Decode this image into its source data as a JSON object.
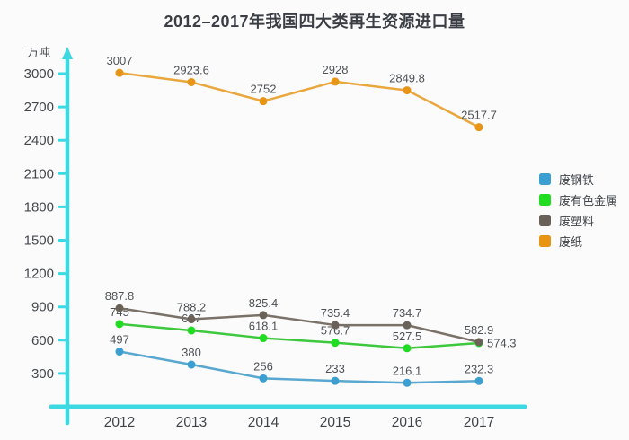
{
  "title": "2012–2017年我国四大类再生资源进口量",
  "unit_label": "万吨",
  "chart_data": {
    "type": "line",
    "title": "2012–2017年我国四大类再生资源进口量",
    "xlabel": "",
    "ylabel": "万吨",
    "categories": [
      "2012",
      "2013",
      "2014",
      "2015",
      "2016",
      "2017"
    ],
    "series": [
      {
        "name": "废钢铁",
        "color": "#5aa8d0",
        "marker_color": "#3c9fd2",
        "values": [
          497,
          380,
          256,
          233,
          216.1,
          232.3
        ],
        "label_positions": [
          "top",
          "top",
          "top",
          "top",
          "top",
          "top"
        ]
      },
      {
        "name": "废有色金属",
        "color": "#3ec83e",
        "marker_color": "#21dd21",
        "values": [
          745,
          687,
          618.1,
          576.7,
          527.5,
          574.3
        ],
        "label_positions": [
          "top",
          "top",
          "top",
          "top",
          "top",
          "right"
        ]
      },
      {
        "name": "废塑料",
        "color": "#7a7168",
        "marker_color": "#6a6259",
        "values": [
          887.8,
          788.2,
          825.4,
          735.4,
          734.7,
          582.9
        ],
        "label_positions": [
          "top",
          "top",
          "top",
          "top",
          "top",
          "top"
        ]
      },
      {
        "name": "废纸",
        "color": "#e9a73e",
        "marker_color": "#e89414",
        "values": [
          3007,
          2923.6,
          2752,
          2928,
          2849.8,
          2517.7
        ],
        "label_positions": [
          "top",
          "top",
          "top",
          "top",
          "top",
          "top"
        ]
      }
    ],
    "yticks": [
      300,
      600,
      900,
      1200,
      1500,
      1800,
      2100,
      2400,
      2700,
      3000
    ],
    "ylim": [
      0,
      3100
    ],
    "grid": false,
    "legend_position": "right",
    "axis_color": "#3dd9e2",
    "label_color": "#4e5256",
    "tick_label_color": "#44484d"
  }
}
